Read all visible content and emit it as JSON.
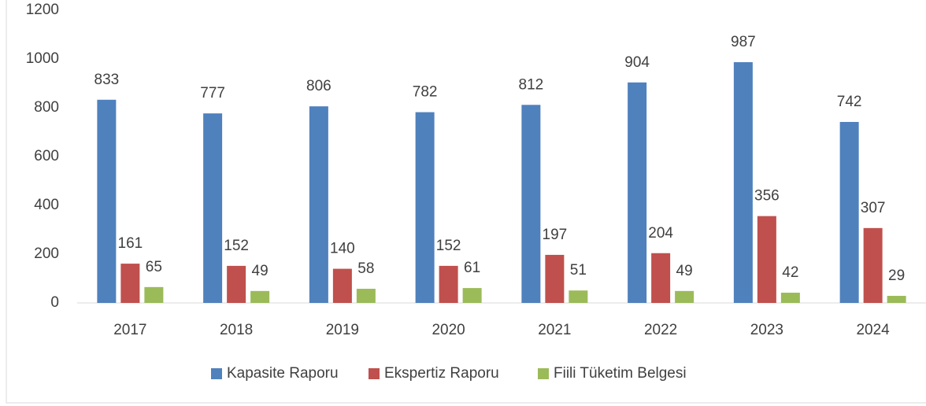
{
  "chart_data": {
    "type": "bar",
    "categories": [
      "2017",
      "2018",
      "2019",
      "2020",
      "2021",
      "2022",
      "2023",
      "2024"
    ],
    "series": [
      {
        "name": "Kapasite Raporu",
        "color": "#4f81bd",
        "values": [
          833,
          777,
          806,
          782,
          812,
          904,
          987,
          742
        ]
      },
      {
        "name": "Ekspertiz Raporu",
        "color": "#c0504d",
        "values": [
          161,
          152,
          140,
          152,
          197,
          204,
          356,
          307
        ]
      },
      {
        "name": "Fiili Tüketim Belgesi",
        "color": "#9bbb59",
        "values": [
          65,
          49,
          58,
          61,
          51,
          49,
          42,
          29
        ]
      }
    ],
    "ylim": [
      0,
      1200
    ],
    "yticks": [
      0,
      200,
      400,
      600,
      800,
      1000,
      1200
    ],
    "grid": false,
    "legend": "bottom"
  }
}
